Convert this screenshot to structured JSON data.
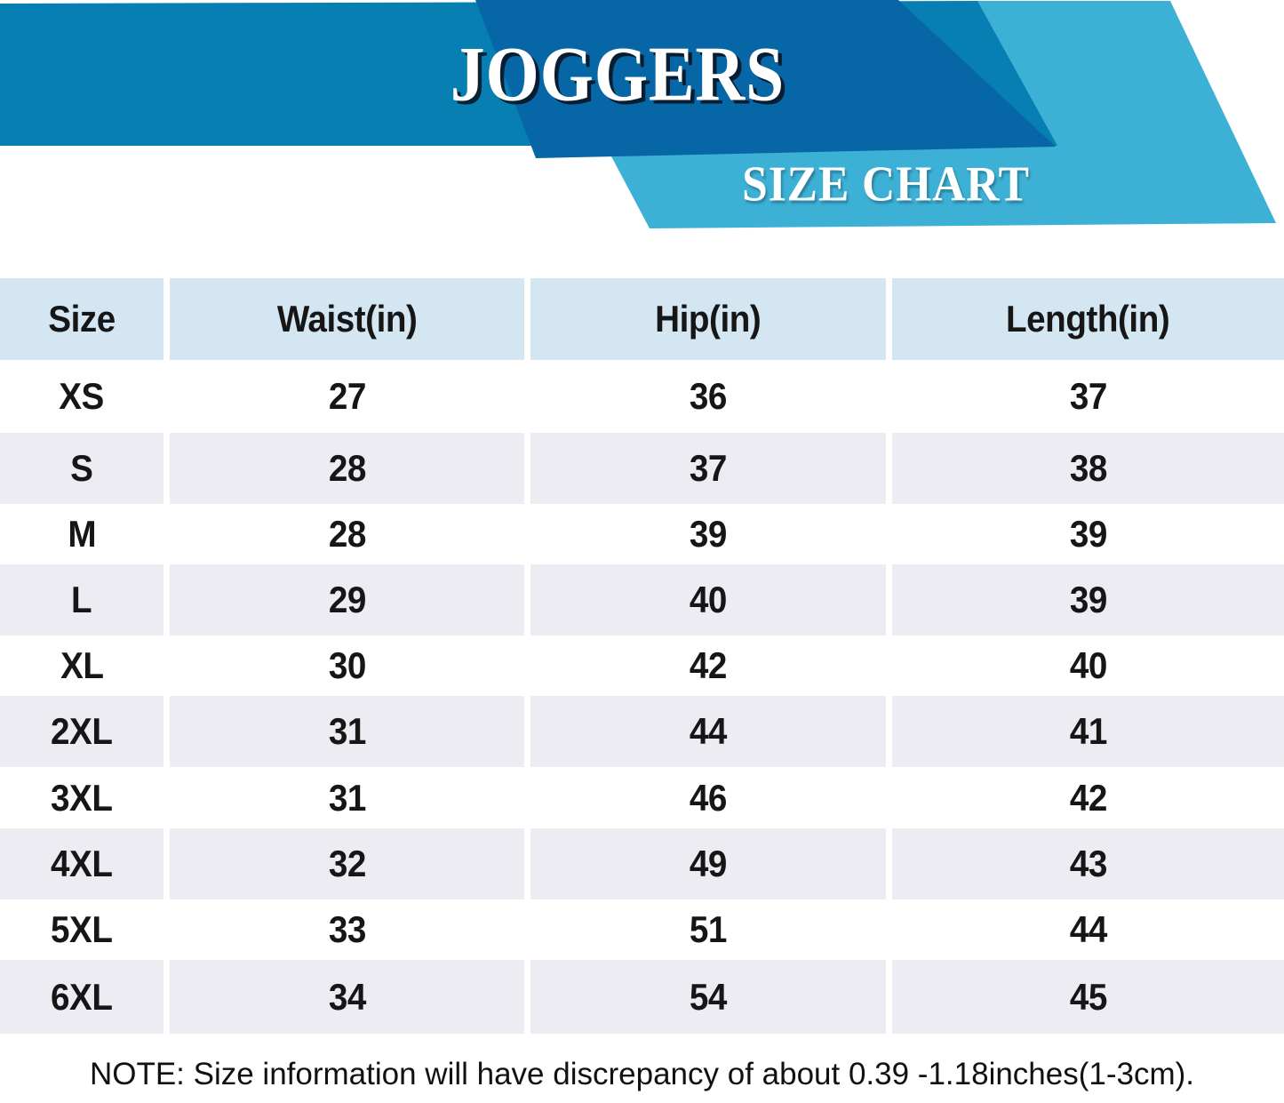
{
  "banner": {
    "title": "JOGGERS",
    "subtitle": "SIZE CHART"
  },
  "chart_data": {
    "type": "table",
    "title": "JOGGERS",
    "subtitle": "SIZE CHART",
    "columns": [
      "Size",
      "Waist(in)",
      "Hip(in)",
      "Length(in)"
    ],
    "rows": [
      [
        "XS",
        27,
        36,
        37
      ],
      [
        "S",
        28,
        37,
        38
      ],
      [
        "M",
        28,
        39,
        39
      ],
      [
        "L",
        29,
        40,
        39
      ],
      [
        "XL",
        30,
        42,
        40
      ],
      [
        "2XL",
        31,
        44,
        41
      ],
      [
        "3XL",
        31,
        46,
        42
      ],
      [
        "4XL",
        32,
        49,
        43
      ],
      [
        "5XL",
        33,
        51,
        44
      ],
      [
        "6XL",
        34,
        54,
        45
      ]
    ],
    "note": "NOTE: Size information will have discrepancy of about 0.39 -1.18inches(1-3cm)."
  },
  "colors": {
    "banner_medium_blue": "#077FB2",
    "banner_dark_blue": "#0767A6",
    "banner_light_blue": "#3DB1D5",
    "header_cell_blue": "#D3E6F1",
    "stripe_row_gray": "#EDECF2",
    "text": "#161616"
  }
}
